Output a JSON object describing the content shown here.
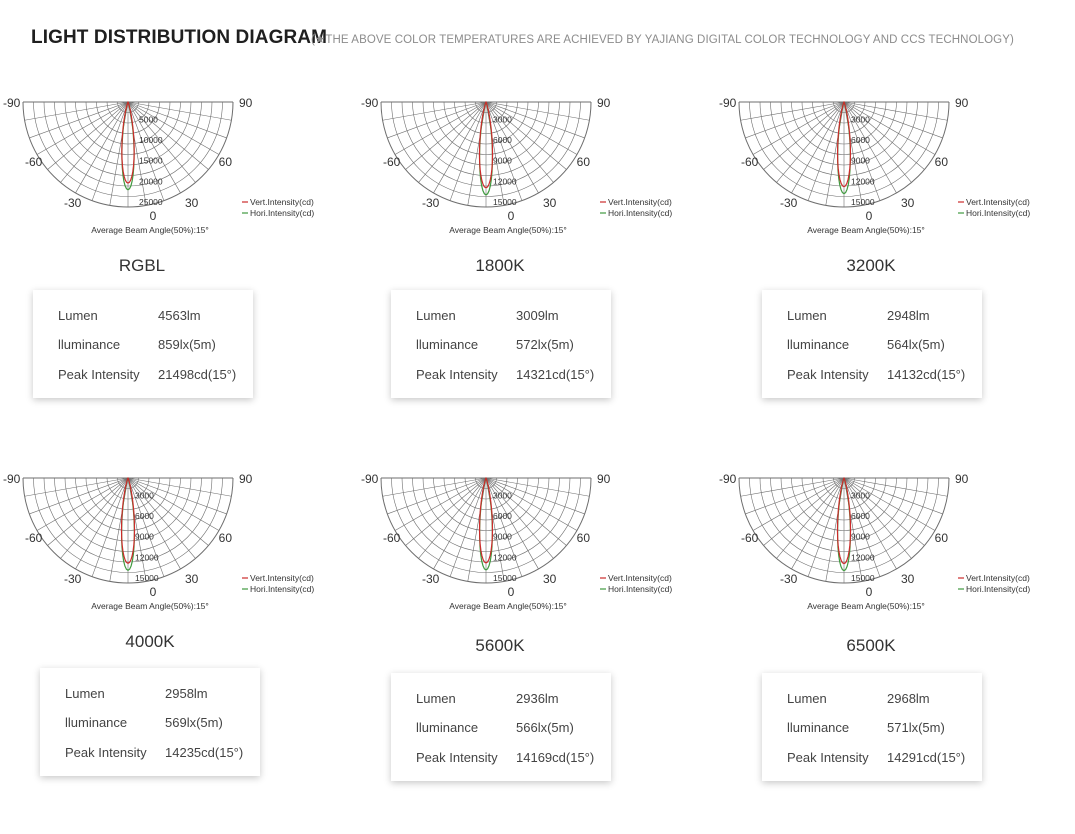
{
  "header": {
    "title": "LIGHT DISTRIBUTION DIAGRAM",
    "note": "(★THE ABOVE COLOR TEMPERATURES ARE ACHIEVED BY YAJIANG DIGITAL COLOR TECHNOLOGY AND CCS TECHNOLOGY)"
  },
  "legend": {
    "vert": "Vert.Intensity(cd)",
    "hori": "Hori.Intensity(cd)"
  },
  "angle_labels": [
    "-90",
    "90",
    "-60",
    "60",
    "-30",
    "30",
    "0"
  ],
  "beam_caption": "Average Beam Angle(50%):15°",
  "colors": {
    "vert": "#cc2b2b",
    "hori": "#3f9a3f",
    "grid": "#6e6e6e",
    "title": "#1f1f1f",
    "note": "#8c8c8c"
  },
  "spec_labels": {
    "lumen": "Lumen",
    "illuminance": "lluminance",
    "peak": "Peak Intensity"
  },
  "chart_data": [
    {
      "type": "polar",
      "name": "RGBL",
      "rings": [
        "5000",
        "10000",
        "15000",
        "20000",
        "25000"
      ],
      "max": 27000,
      "beam_angle": 15,
      "vert_peak": 21498,
      "hori_peak": 21498,
      "lumen": "4563lm",
      "illuminance": "859lx(5m)",
      "peak": "21498cd(15°)"
    },
    {
      "type": "polar",
      "name": "1800K",
      "rings": [
        "3000",
        "6000",
        "9000",
        "12000",
        "15000"
      ],
      "max": 17000,
      "beam_angle": 15,
      "vert_peak": 14321,
      "hori_peak": 14321,
      "lumen": "3009lm",
      "illuminance": "572lx(5m)",
      "peak": "14321cd(15°)"
    },
    {
      "type": "polar",
      "name": "3200K",
      "rings": [
        "3000",
        "6000",
        "9000",
        "12000",
        "15000"
      ],
      "max": 17000,
      "beam_angle": 15,
      "vert_peak": 14132,
      "hori_peak": 14132,
      "lumen": "2948lm",
      "illuminance": "564lx(5m)",
      "peak": "14132cd(15°)"
    },
    {
      "type": "polar",
      "name": "4000K",
      "rings": [
        "3000",
        "6000",
        "9000",
        "12000",
        "15000"
      ],
      "max": 17000,
      "beam_angle": 15,
      "vert_peak": 14235,
      "hori_peak": 14235,
      "lumen": "2958lm",
      "illuminance": "569lx(5m)",
      "peak": "14235cd(15°)"
    },
    {
      "type": "polar",
      "name": "5600K",
      "rings": [
        "3000",
        "6000",
        "9000",
        "12000",
        "15000"
      ],
      "max": 17000,
      "beam_angle": 15,
      "vert_peak": 14169,
      "hori_peak": 14169,
      "lumen": "2936lm",
      "illuminance": "566lx(5m)",
      "peak": "14169cd(15°)"
    },
    {
      "type": "polar",
      "name": "6500K",
      "rings": [
        "3000",
        "6000",
        "9000",
        "12000",
        "15000"
      ],
      "max": 17000,
      "beam_angle": 15,
      "vert_peak": 14291,
      "hori_peak": 14291,
      "lumen": "2968lm",
      "illuminance": "571lx(5m)",
      "peak": "14291cd(15°)"
    }
  ]
}
